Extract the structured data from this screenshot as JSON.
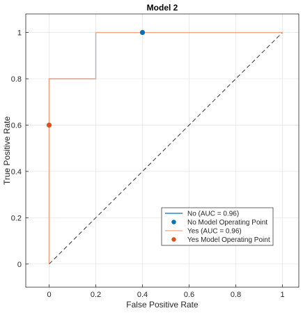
{
  "chart_data": {
    "type": "line",
    "title": "Model 2",
    "xlabel": "False Positive Rate",
    "ylabel": "True Positive Rate",
    "xlim": [
      -0.1,
      1.07
    ],
    "ylim": [
      -0.1,
      1.08
    ],
    "xticks": [
      0,
      0.2,
      0.4,
      0.6,
      0.8,
      1
    ],
    "yticks": [
      0,
      0.2,
      0.4,
      0.6,
      0.8,
      1
    ],
    "grid": true,
    "legend_location": "lower-right",
    "series": [
      {
        "name": "No (AUC = 0.96)",
        "kind": "line",
        "color": "#0072BD",
        "x": [
          0,
          0,
          0.2,
          0.2,
          1
        ],
        "y": [
          0,
          0.8,
          0.8,
          1,
          1
        ]
      },
      {
        "name": "No Model Operating Point",
        "kind": "point",
        "color": "#0072BD",
        "x": [
          0.4
        ],
        "y": [
          1
        ]
      },
      {
        "name": "Yes (AUC = 0.96)",
        "kind": "line",
        "color": "#F4A582",
        "x": [
          0,
          0,
          0.2,
          0.2,
          1
        ],
        "y": [
          0,
          0.8,
          0.8,
          1,
          1
        ]
      },
      {
        "name": "Yes Model Operating Point",
        "kind": "point",
        "color": "#D95319",
        "x": [
          0
        ],
        "y": [
          0.6
        ]
      }
    ],
    "reference_line": {
      "x": [
        0,
        1
      ],
      "y": [
        0,
        1
      ],
      "color": "#333333",
      "style": "dashed"
    }
  }
}
